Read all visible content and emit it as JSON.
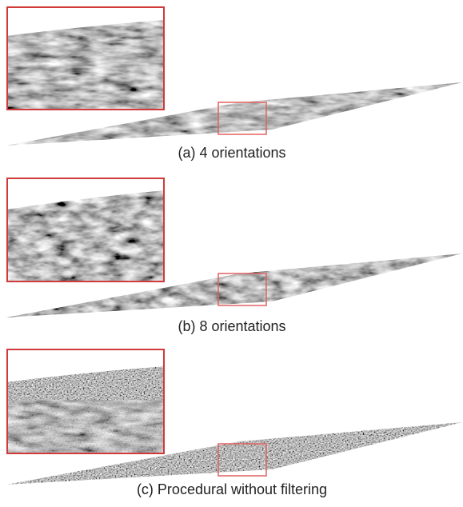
{
  "panels": [
    {
      "caption": "(a) 4 orientations"
    },
    {
      "caption": "(b) 8 orientations"
    },
    {
      "caption": "(c) Procedural without filtering"
    }
  ]
}
